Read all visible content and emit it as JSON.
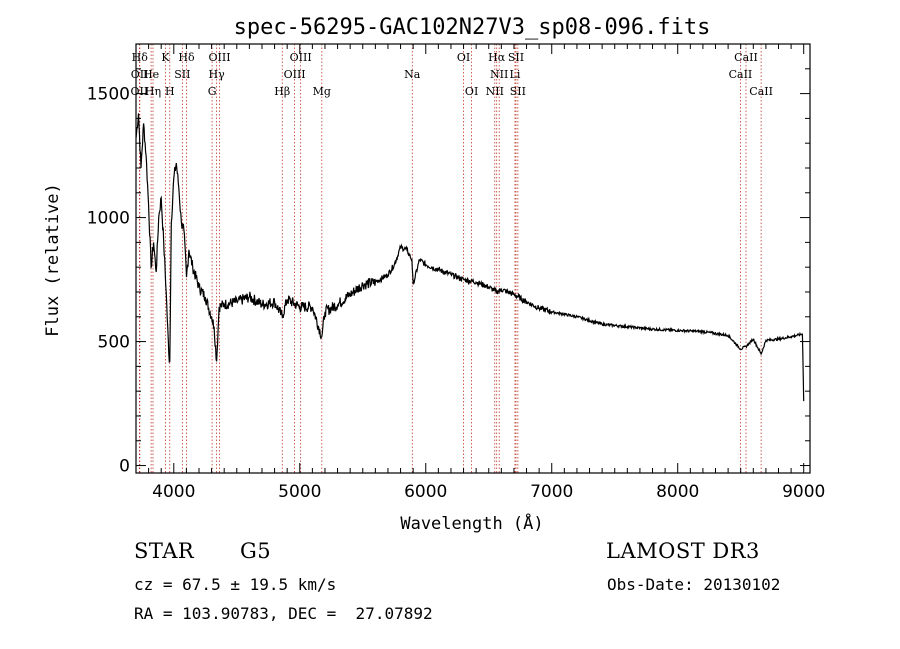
{
  "chart_data": {
    "type": "line",
    "title": "spec-56295-GAC102N27V3_sp08-096.fits",
    "xlabel": "Wavelength (Å)",
    "ylabel": "Flux (relative)",
    "xlim": [
      3700,
      9050
    ],
    "ylim": [
      -30,
      1700
    ],
    "xticks": [
      4000,
      5000,
      6000,
      7000,
      8000,
      9000
    ],
    "yticks": [
      0,
      500,
      1000,
      1500
    ],
    "series": [
      {
        "name": "flux",
        "x": [
          3700,
          3720,
          3740,
          3760,
          3780,
          3800,
          3820,
          3840,
          3860,
          3880,
          3900,
          3920,
          3940,
          3960,
          3968,
          3980,
          4000,
          4020,
          4040,
          4060,
          4080,
          4101,
          4120,
          4150,
          4200,
          4250,
          4300,
          4320,
          4340,
          4360,
          4400,
          4500,
          4600,
          4700,
          4800,
          4861,
          4900,
          5000,
          5100,
          5175,
          5200,
          5300,
          5400,
          5500,
          5600,
          5700,
          5750,
          5800,
          5850,
          5890,
          5900,
          5950,
          6000,
          6100,
          6200,
          6300,
          6400,
          6500,
          6563,
          6600,
          6700,
          6800,
          6900,
          7000,
          7200,
          7400,
          7600,
          7800,
          8000,
          8200,
          8400,
          8498,
          8542,
          8600,
          8662,
          8700,
          8800,
          8900,
          8990,
          9000
        ],
        "y": [
          1320,
          1420,
          1200,
          1380,
          1250,
          1050,
          800,
          900,
          780,
          1000,
          1080,
          900,
          700,
          450,
          420,
          980,
          1160,
          1220,
          1120,
          980,
          950,
          760,
          870,
          800,
          720,
          680,
          600,
          560,
          420,
          640,
          650,
          660,
          680,
          650,
          660,
          600,
          670,
          640,
          640,
          520,
          620,
          650,
          690,
          730,
          740,
          770,
          810,
          880,
          870,
          830,
          730,
          830,
          810,
          790,
          770,
          750,
          740,
          720,
          700,
          710,
          690,
          660,
          635,
          620,
          600,
          570,
          560,
          550,
          545,
          540,
          525,
          470,
          480,
          510,
          450,
          505,
          510,
          520,
          530,
          260
        ]
      }
    ],
    "line_markers": [
      {
        "label": "OII",
        "wavelength": 3727,
        "row": 2
      },
      {
        "label": "Hδ",
        "wavelength": 3730,
        "row": 0
      },
      {
        "label": "OII",
        "wavelength": 3729,
        "row": 1
      },
      {
        "label": "He",
        "wavelength": 3820,
        "row": 1
      },
      {
        "label": "Hη",
        "wavelength": 3835,
        "row": 2
      },
      {
        "label": "K",
        "wavelength": 3934,
        "row": 0
      },
      {
        "label": "H",
        "wavelength": 3968,
        "row": 2
      },
      {
        "label": "SII",
        "wavelength": 4068,
        "row": 1
      },
      {
        "label": "Hδ",
        "wavelength": 4101,
        "row": 0
      },
      {
        "label": "G",
        "wavelength": 4304,
        "row": 2
      },
      {
        "label": "Hγ",
        "wavelength": 4340,
        "row": 1
      },
      {
        "label": "OIII",
        "wavelength": 4363,
        "row": 0
      },
      {
        "label": "Hβ",
        "wavelength": 4861,
        "row": 2
      },
      {
        "label": "OIII",
        "wavelength": 4959,
        "row": 1
      },
      {
        "label": "OIII",
        "wavelength": 5007,
        "row": 0
      },
      {
        "label": "Mg",
        "wavelength": 5175,
        "row": 2
      },
      {
        "label": "Na",
        "wavelength": 5893,
        "row": 1
      },
      {
        "label": "OI",
        "wavelength": 6300,
        "row": 0
      },
      {
        "label": "OI",
        "wavelength": 6364,
        "row": 2
      },
      {
        "label": "NII",
        "wavelength": 6548,
        "row": 2
      },
      {
        "label": "Hα",
        "wavelength": 6563,
        "row": 0
      },
      {
        "label": "NII",
        "wavelength": 6583,
        "row": 1
      },
      {
        "label": "Li",
        "wavelength": 6708,
        "row": 1
      },
      {
        "label": "SII",
        "wavelength": 6716,
        "row": 0
      },
      {
        "label": "SII",
        "wavelength": 6731,
        "row": 2
      },
      {
        "label": "CaII",
        "wavelength": 8498,
        "row": 1
      },
      {
        "label": "CaII",
        "wavelength": 8542,
        "row": 0
      },
      {
        "label": "CaII",
        "wavelength": 8662,
        "row": 2
      }
    ]
  },
  "info": {
    "object_class": "STAR",
    "subclass": "G5",
    "survey": "LAMOST DR3",
    "cz": "cz = 67.5 ± 19.5 km/s",
    "obs_date": "Obs-Date: 20130102",
    "coords": "RA = 103.90783, DEC =  27.07892"
  },
  "colors": {
    "spectrum": "#000000",
    "marker_line": "#c0392b",
    "background": "#ffffff"
  }
}
